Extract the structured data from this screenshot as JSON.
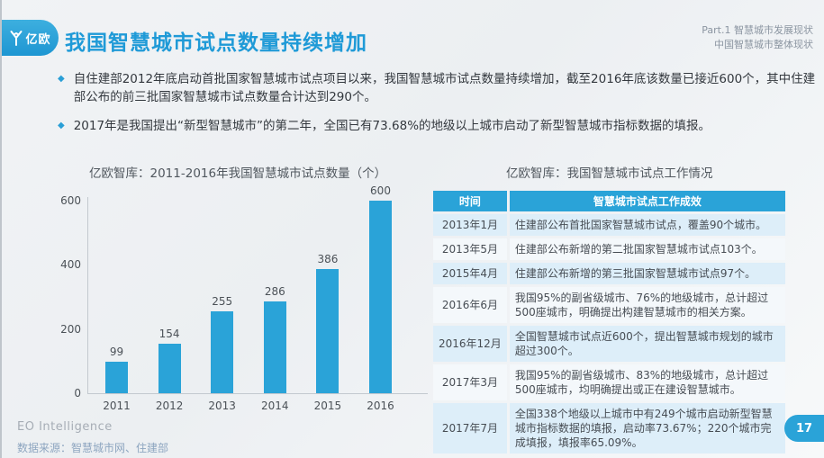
{
  "header": {
    "logo_text": "亿欧",
    "title": "我国智慧城市试点数量持续增加",
    "part_line1": "Part.1 智慧城市发展现状",
    "part_line2": "中国智慧城市整体现状"
  },
  "bullets": [
    "自住建部2012年底启动首批国家智慧城市试点项目以来，我国智慧城市试点数量持续增加，截至2016年底该数量已接近600个，其中住建部公布的前三批国家智慧城市试点数量合计达到290个。",
    "2017年是我国提出“新型智慧城市”的第二年，全国已有73.68%的地级以上城市启动了新型智慧城市指标数据的填报。"
  ],
  "chart_data": {
    "type": "bar",
    "title": "亿欧智库：2011-2016年我国智慧城市试点数量（个）",
    "categories": [
      "2011",
      "2012",
      "2013",
      "2014",
      "2015",
      "2016"
    ],
    "values": [
      99,
      154,
      255,
      286,
      386,
      600
    ],
    "xlabel": "",
    "ylabel": "",
    "ylim": [
      0,
      600
    ],
    "yticks": [
      0,
      200,
      400,
      600
    ],
    "grid": false,
    "legend": "none",
    "bar_color": "#2aa3d8"
  },
  "table": {
    "title": "亿欧智库：我国智慧城市试点工作情况",
    "headers": [
      "时间",
      "智慧城市试点工作成效"
    ],
    "rows": [
      [
        "2013年1月",
        "住建部公布首批国家智慧城市试点，覆盖90个城市。"
      ],
      [
        "2013年5月",
        "住建部公布新增的第二批国家智慧城市试点103个。"
      ],
      [
        "2015年4月",
        "住建部公布新增的第三批国家智慧城市试点97个。"
      ],
      [
        "2016年6月",
        "我国95%的副省级城市、76%的地级城市，总计超过500座城市，明确提出构建智慧城市的相关方案。"
      ],
      [
        "2016年12月",
        "全国智慧城市试点近600个，提出智慧城市规划的城市超过300个。"
      ],
      [
        "2017年3月",
        "我国95%的副省级城市、83%的地级城市，总计超过500座城市，均明确提出或正在建设智慧城市。"
      ],
      [
        "2017年7月",
        "全国338个地级以上城市中有249个城市启动新型智慧城市指标数据的填报，启动率73.67%；220个城市完成填报，填报率65.09%。"
      ]
    ]
  },
  "footer": {
    "brand": "EO Intelligence",
    "source": "数据来源：智慧城市网、住建部",
    "page": "17"
  },
  "colors": {
    "accent": "#2aa3d8",
    "title_blue": "#1f9ad7",
    "row_alt_blue": "#ddeef9",
    "row_alt_gray": "#f4f8fb"
  }
}
